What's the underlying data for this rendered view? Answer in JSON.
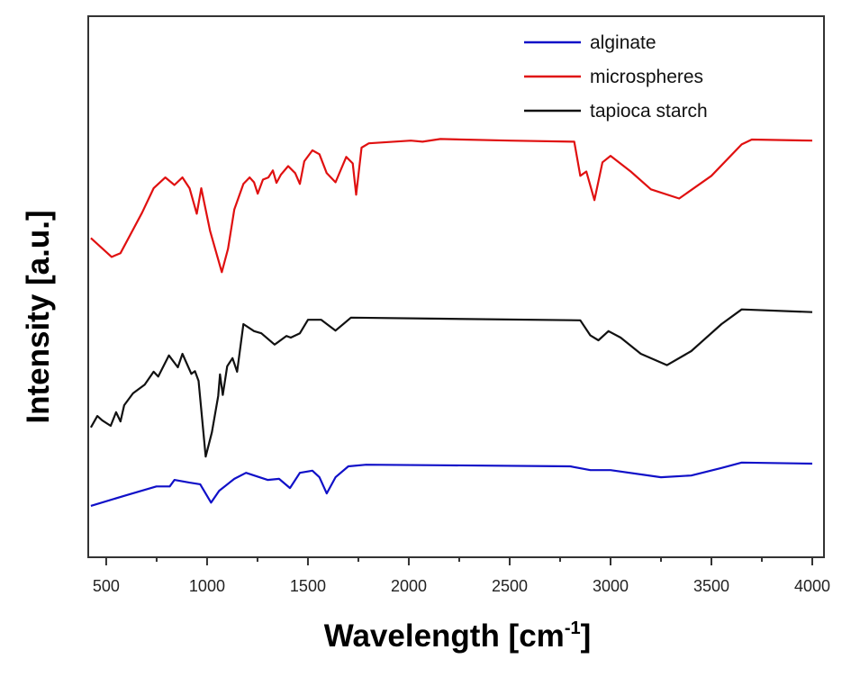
{
  "chart_data": {
    "type": "line",
    "title": "",
    "xlabel": "Wavelength [cm",
    "xlabel_superscript": "-1",
    "xlabel_close": "]",
    "ylabel": "Intensity [a.u.]",
    "xlim": [
      411,
      4058
    ],
    "ylim": [
      0,
      100
    ],
    "xticks": [
      500,
      1000,
      1500,
      2000,
      2500,
      3000,
      3500,
      4000
    ],
    "minor_xticks": [
      750,
      1250,
      1750,
      2250,
      2750,
      3250,
      3750
    ],
    "yticks": [],
    "grid": false,
    "legend_position": "top-right",
    "series": [
      {
        "name": "alginate",
        "color": "#1010c8",
        "points": [
          [
            424,
            9.5
          ],
          [
            602,
            11.5
          ],
          [
            749,
            13.1
          ],
          [
            815,
            13.1
          ],
          [
            838,
            14.3
          ],
          [
            913,
            13.8
          ],
          [
            966,
            13.5
          ],
          [
            1020,
            10.1
          ],
          [
            1060,
            12.3
          ],
          [
            1135,
            14.5
          ],
          [
            1193,
            15.6
          ],
          [
            1300,
            14.3
          ],
          [
            1357,
            14.5
          ],
          [
            1411,
            12.8
          ],
          [
            1460,
            15.6
          ],
          [
            1522,
            16.0
          ],
          [
            1557,
            14.8
          ],
          [
            1593,
            11.8
          ],
          [
            1637,
            14.8
          ],
          [
            1700,
            16.8
          ],
          [
            1788,
            17.1
          ],
          [
            2157,
            17.0
          ],
          [
            2800,
            16.8
          ],
          [
            2900,
            16.1
          ],
          [
            3000,
            16.1
          ],
          [
            3250,
            14.8
          ],
          [
            3400,
            15.1
          ],
          [
            3550,
            16.5
          ],
          [
            3650,
            17.5
          ],
          [
            4000,
            17.3
          ]
        ]
      },
      {
        "name": "microspheres",
        "color": "#e01010",
        "points": [
          [
            424,
            59.0
          ],
          [
            527,
            55.5
          ],
          [
            571,
            56.2
          ],
          [
            678,
            63.7
          ],
          [
            735,
            68.2
          ],
          [
            793,
            70.2
          ],
          [
            838,
            68.8
          ],
          [
            878,
            70.2
          ],
          [
            913,
            68.2
          ],
          [
            949,
            63.5
          ],
          [
            971,
            68.2
          ],
          [
            1015,
            60.3
          ],
          [
            1073,
            52.7
          ],
          [
            1104,
            57.0
          ],
          [
            1135,
            64.3
          ],
          [
            1180,
            69.0
          ],
          [
            1211,
            70.2
          ],
          [
            1233,
            69.3
          ],
          [
            1251,
            67.2
          ],
          [
            1277,
            69.8
          ],
          [
            1304,
            70.2
          ],
          [
            1326,
            71.5
          ],
          [
            1344,
            69.2
          ],
          [
            1366,
            70.7
          ],
          [
            1402,
            72.3
          ],
          [
            1437,
            71.0
          ],
          [
            1460,
            69.0
          ],
          [
            1482,
            73.2
          ],
          [
            1522,
            75.2
          ],
          [
            1557,
            74.5
          ],
          [
            1593,
            71.0
          ],
          [
            1637,
            69.3
          ],
          [
            1690,
            74.0
          ],
          [
            1722,
            72.8
          ],
          [
            1739,
            67.0
          ],
          [
            1766,
            75.7
          ],
          [
            1802,
            76.5
          ],
          [
            2010,
            77.0
          ],
          [
            2068,
            76.8
          ],
          [
            2157,
            77.3
          ],
          [
            2500,
            77.0
          ],
          [
            2820,
            76.8
          ],
          [
            2850,
            70.5
          ],
          [
            2880,
            71.3
          ],
          [
            2920,
            66.0
          ],
          [
            2960,
            73.0
          ],
          [
            3000,
            74.2
          ],
          [
            3100,
            71.3
          ],
          [
            3200,
            68.0
          ],
          [
            3340,
            66.3
          ],
          [
            3500,
            70.5
          ],
          [
            3650,
            76.3
          ],
          [
            3700,
            77.2
          ],
          [
            4000,
            77.0
          ]
        ]
      },
      {
        "name": "tapioca starch",
        "color": "#111111",
        "points": [
          [
            424,
            24.0
          ],
          [
            456,
            26.1
          ],
          [
            480,
            25.3
          ],
          [
            522,
            24.3
          ],
          [
            549,
            26.8
          ],
          [
            571,
            25.1
          ],
          [
            589,
            28.1
          ],
          [
            633,
            30.3
          ],
          [
            691,
            31.9
          ],
          [
            735,
            34.3
          ],
          [
            758,
            33.4
          ],
          [
            811,
            37.3
          ],
          [
            855,
            35.1
          ],
          [
            878,
            37.6
          ],
          [
            922,
            33.9
          ],
          [
            940,
            34.4
          ],
          [
            958,
            32.6
          ],
          [
            993,
            18.6
          ],
          [
            1024,
            23.1
          ],
          [
            1055,
            29.8
          ],
          [
            1064,
            33.8
          ],
          [
            1078,
            30.0
          ],
          [
            1100,
            35.3
          ],
          [
            1126,
            36.8
          ],
          [
            1149,
            34.3
          ],
          [
            1180,
            43.1
          ],
          [
            1233,
            41.8
          ],
          [
            1269,
            41.4
          ],
          [
            1335,
            39.3
          ],
          [
            1393,
            40.9
          ],
          [
            1415,
            40.6
          ],
          [
            1460,
            41.4
          ],
          [
            1500,
            43.9
          ],
          [
            1566,
            43.9
          ],
          [
            1637,
            41.9
          ],
          [
            1713,
            44.3
          ],
          [
            2157,
            44.1
          ],
          [
            2850,
            43.8
          ],
          [
            2900,
            41.0
          ],
          [
            2940,
            40.1
          ],
          [
            2990,
            41.8
          ],
          [
            3050,
            40.6
          ],
          [
            3150,
            37.6
          ],
          [
            3280,
            35.5
          ],
          [
            3400,
            38.1
          ],
          [
            3550,
            43.1
          ],
          [
            3650,
            45.8
          ],
          [
            4000,
            45.3
          ]
        ]
      }
    ]
  }
}
